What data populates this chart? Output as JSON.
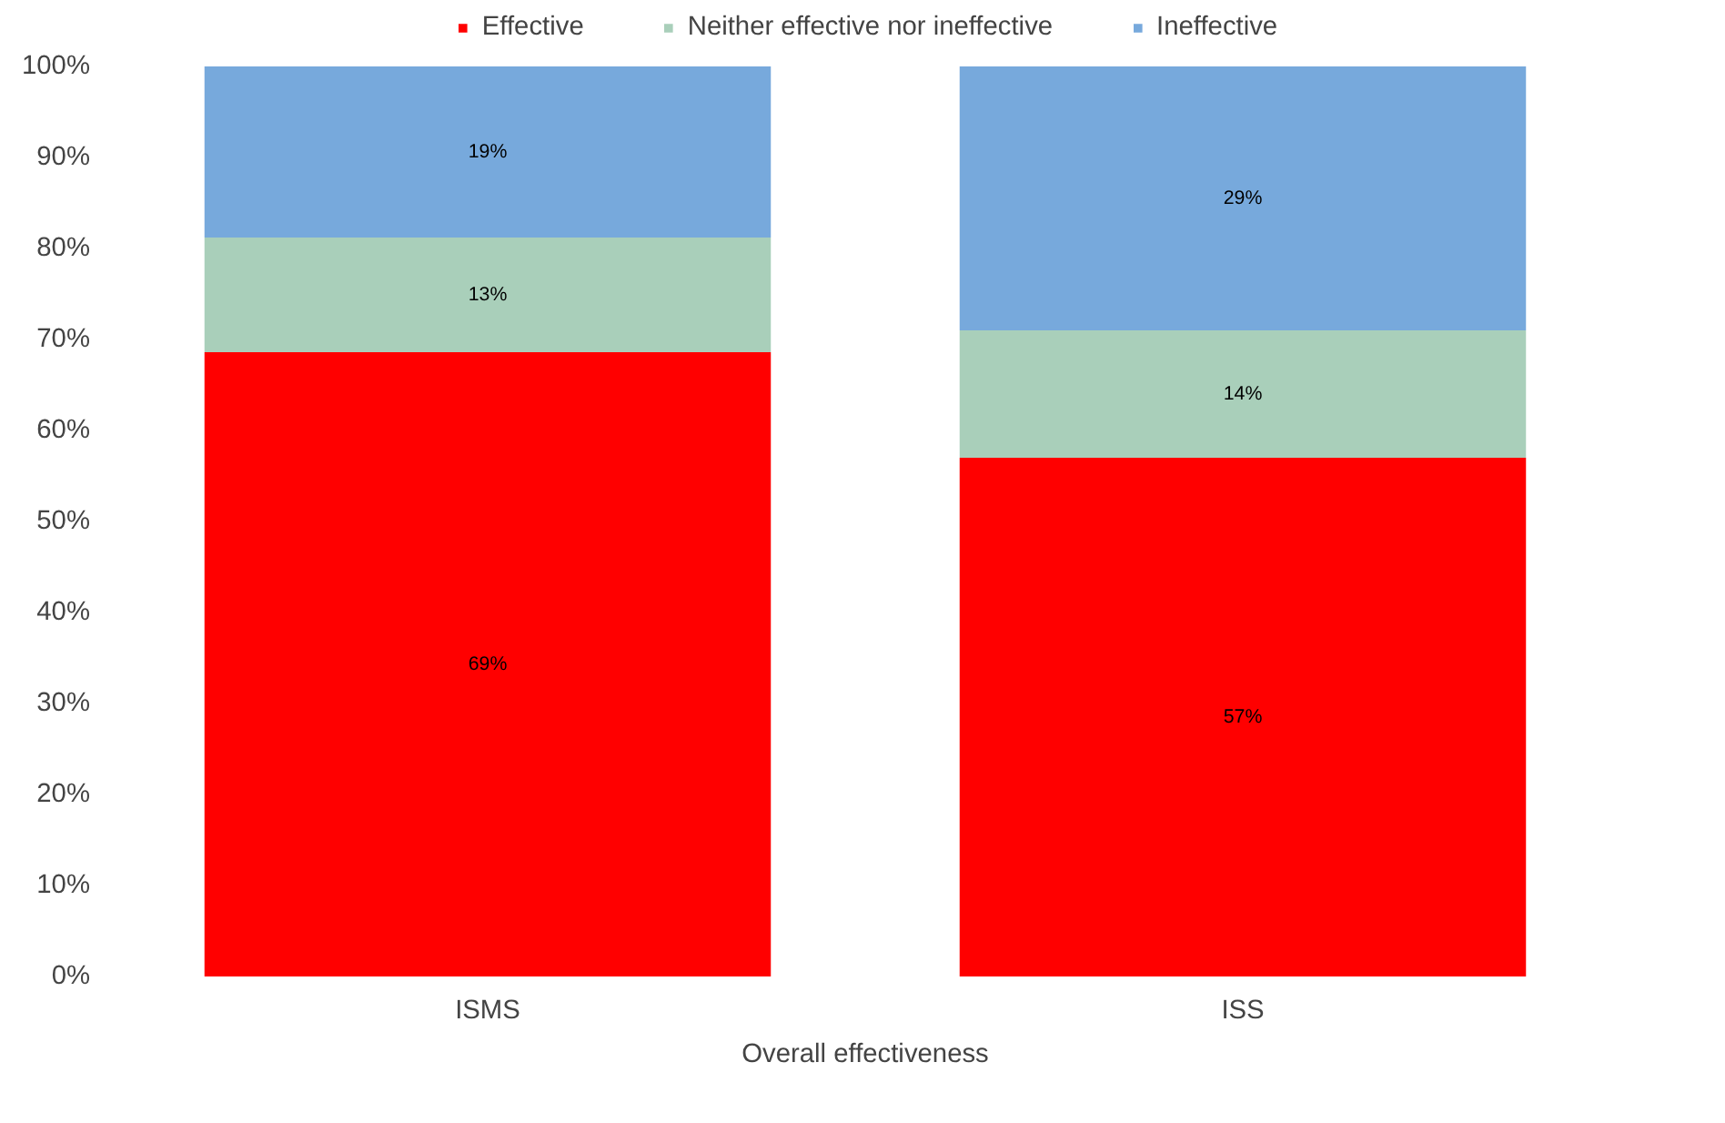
{
  "chart_data": {
    "type": "bar",
    "stacked": true,
    "xlabel": "Overall effectiveness",
    "categories": [
      "ISMS",
      "ISS"
    ],
    "series": [
      {
        "name": "Effective",
        "color": "#ff0000",
        "values": [
          68.6,
          57
        ],
        "value_labels": [
          "69%",
          "57%"
        ]
      },
      {
        "name": "Neither effective nor ineffective",
        "color": "#a9cfba",
        "values": [
          12.6,
          14
        ],
        "value_labels": [
          "13%",
          "14%"
        ]
      },
      {
        "name": "Ineffective",
        "color": "#77a9dc",
        "values": [
          18.8,
          29
        ],
        "value_labels": [
          "19%",
          "29%"
        ]
      }
    ],
    "ylim": [
      0,
      100
    ],
    "yticks": [
      {
        "value": 0,
        "label": "0%"
      },
      {
        "value": 10,
        "label": "10%"
      },
      {
        "value": 20,
        "label": "20%"
      },
      {
        "value": 30,
        "label": "30%"
      },
      {
        "value": 40,
        "label": "40%"
      },
      {
        "value": 50,
        "label": "50%"
      },
      {
        "value": 60,
        "label": "60%"
      },
      {
        "value": 70,
        "label": "70%"
      },
      {
        "value": 80,
        "label": "80%"
      },
      {
        "value": 90,
        "label": "90%"
      },
      {
        "value": 100,
        "label": "100%"
      }
    ],
    "legend": "top",
    "grid": false
  }
}
